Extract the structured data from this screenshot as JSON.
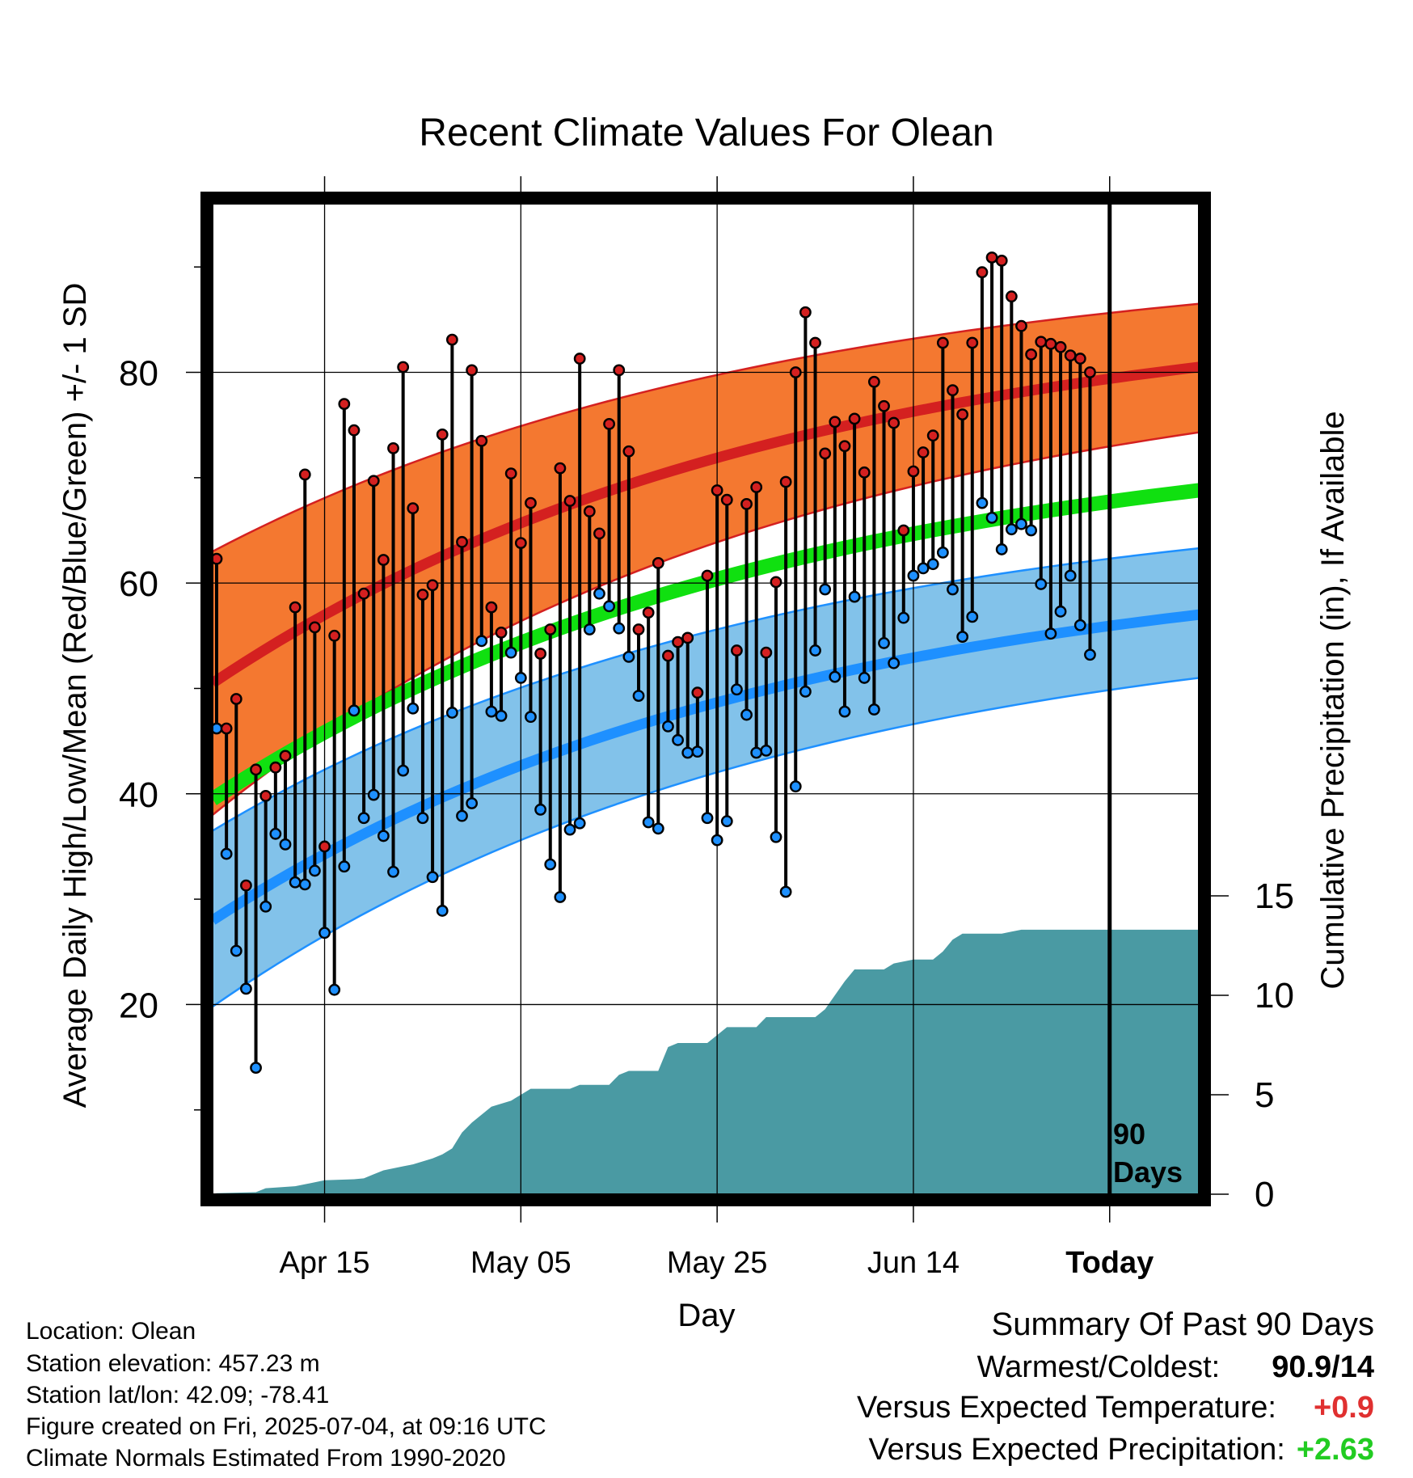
{
  "chart_data": {
    "type": "line",
    "title": "Recent Climate Values For Olean",
    "xlabel": "Day",
    "ylabel": "Average Daily High/Low/Mean (Red/Blue/Green) +/- 1 SD",
    "y2label": "Cumulative Precipitation (in), If Available",
    "xticks": [
      {
        "day": 11,
        "label": "Apr 15"
      },
      {
        "day": 31,
        "label": "May 05"
      },
      {
        "day": 51,
        "label": "May 25"
      },
      {
        "day": 71,
        "label": "Jun 14"
      },
      {
        "day": 91,
        "label": "Today"
      }
    ],
    "yticks": [
      "20",
      "40",
      "60",
      "80"
    ],
    "y2ticks": [
      "0",
      "5",
      "10",
      "15"
    ],
    "ylim": [
      2,
      96
    ],
    "y2lim": [
      0,
      15
    ],
    "xlim": [
      0,
      100
    ],
    "today_day": 91,
    "today_label": [
      "90",
      "Days"
    ],
    "grid": true,
    "normals": {
      "high_mean": [
        50.5,
        80.5
      ],
      "high_upper": [
        63.0,
        86.5
      ],
      "high_lower": [
        38.0,
        74.3
      ],
      "mean": [
        39.5,
        68.8
      ],
      "low_mean": [
        28.0,
        57.0
      ],
      "low_upper": [
        36.5,
        63.3
      ],
      "low_lower": [
        19.8,
        51.0
      ]
    },
    "highs": [
      62.3,
      46.2,
      49.0,
      31.3,
      42.3,
      39.8,
      42.5,
      43.6,
      57.7,
      70.3,
      55.8,
      35.0,
      55.0,
      77.0,
      74.5,
      59.0,
      69.7,
      62.2,
      72.8,
      80.5,
      67.1,
      58.9,
      59.8,
      74.1,
      83.1,
      63.9,
      80.2,
      73.5,
      57.7,
      55.3,
      70.4,
      63.8,
      67.6,
      53.3,
      55.6,
      70.9,
      67.8,
      81.3,
      66.8,
      64.7,
      75.1,
      80.2,
      72.5,
      55.6,
      57.2,
      61.9,
      53.1,
      54.4,
      54.8,
      49.6,
      60.7,
      68.8,
      67.9,
      53.6,
      67.5,
      69.1,
      53.4,
      60.1,
      69.6,
      80.0,
      85.7,
      82.8,
      72.3,
      75.3,
      73.0,
      75.6,
      70.5,
      79.1,
      76.8,
      75.2,
      65.0,
      70.6,
      72.4,
      74.0,
      82.8,
      78.3,
      76.0,
      82.8,
      89.5,
      90.9,
      90.6,
      87.2,
      84.4,
      81.7,
      82.9,
      82.7,
      82.4,
      81.6,
      81.3,
      80.0
    ],
    "lows": [
      46.2,
      34.3,
      25.1,
      21.5,
      14.0,
      29.3,
      36.2,
      35.2,
      31.6,
      31.4,
      32.7,
      26.8,
      21.4,
      33.1,
      47.9,
      37.7,
      39.9,
      36.0,
      32.6,
      42.2,
      48.1,
      37.7,
      32.1,
      28.9,
      47.7,
      37.9,
      39.1,
      54.5,
      47.8,
      47.4,
      53.4,
      51.0,
      47.3,
      38.5,
      33.3,
      30.2,
      36.6,
      37.2,
      55.6,
      59.0,
      57.8,
      55.7,
      53.0,
      49.3,
      37.3,
      36.7,
      46.4,
      45.1,
      43.9,
      44.0,
      37.7,
      35.6,
      37.4,
      49.9,
      47.5,
      43.9,
      44.1,
      35.9,
      30.7,
      40.7,
      49.7,
      53.6,
      59.4,
      51.1,
      47.8,
      58.7,
      51.0,
      48.0,
      54.3,
      52.4,
      56.7,
      60.7,
      61.4,
      61.8,
      62.9,
      59.4,
      54.9,
      56.8,
      67.6,
      66.2,
      63.2,
      65.1,
      65.6,
      65.0,
      59.9,
      55.2,
      57.3,
      60.7,
      56.0,
      53.2
    ],
    "precip": [
      [
        0,
        0.05
      ],
      [
        4,
        0.1
      ],
      [
        5,
        0.3
      ],
      [
        8,
        0.4
      ],
      [
        10,
        0.6
      ],
      [
        11,
        0.7
      ],
      [
        14,
        0.75
      ],
      [
        15,
        0.8
      ],
      [
        16,
        1.0
      ],
      [
        17,
        1.2
      ],
      [
        19,
        1.4
      ],
      [
        20,
        1.5
      ],
      [
        22,
        1.8
      ],
      [
        23,
        2.0
      ],
      [
        24,
        2.3
      ],
      [
        25,
        3.1
      ],
      [
        26,
        3.6
      ],
      [
        28,
        4.4
      ],
      [
        30,
        4.7
      ],
      [
        31,
        5.0
      ],
      [
        32,
        5.3
      ],
      [
        36,
        5.3
      ],
      [
        37,
        5.5
      ],
      [
        40,
        5.5
      ],
      [
        41,
        6.0
      ],
      [
        42,
        6.2
      ],
      [
        45,
        6.2
      ],
      [
        46,
        7.4
      ],
      [
        47,
        7.6
      ],
      [
        50,
        7.6
      ],
      [
        51,
        8.0
      ],
      [
        52,
        8.4
      ],
      [
        55,
        8.4
      ],
      [
        56,
        8.9
      ],
      [
        61,
        8.9
      ],
      [
        62,
        9.3
      ],
      [
        63,
        10.0
      ],
      [
        64,
        10.7
      ],
      [
        65,
        11.3
      ],
      [
        68,
        11.3
      ],
      [
        69,
        11.6
      ],
      [
        71,
        11.8
      ],
      [
        73,
        11.8
      ],
      [
        74,
        12.2
      ],
      [
        75,
        12.8
      ],
      [
        76,
        13.1
      ],
      [
        80,
        13.1
      ],
      [
        81,
        13.2
      ],
      [
        82,
        13.3
      ],
      [
        100,
        13.3
      ]
    ]
  },
  "footer": {
    "location": "Location: Olean",
    "elevation": "Station elevation: 457.23 m",
    "latlon": "Station lat/lon: 42.09; -78.41",
    "created": "Figure created on Fri, 2025-07-04, at 09:16 UTC",
    "normals_source": "Climate Normals Estimated From 1990-2020"
  },
  "summary": {
    "title": "Summary Of Past 90 Days",
    "warm_cold_label": "Warmest/Coldest:",
    "warm_cold_value": "90.9/14",
    "temp_label": "Versus Expected Temperature:",
    "temp_value": "+0.9",
    "precip_label": "Versus Expected Precipitation:",
    "precip_value": "+2.63",
    "colors": {
      "temp": "#e03030",
      "precip": "#22cc22"
    }
  }
}
